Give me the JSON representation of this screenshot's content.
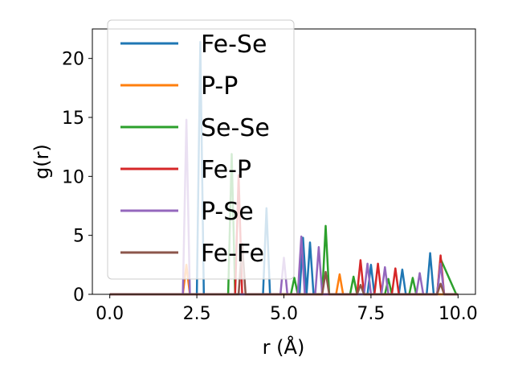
{
  "chart_data": {
    "type": "line",
    "title": "",
    "xlabel": "r (Å)",
    "ylabel": "g(r)",
    "xlim": [
      -0.5,
      10.5
    ],
    "ylim": [
      0,
      22.5
    ],
    "xticks": [
      0.0,
      2.5,
      5.0,
      7.5,
      10.0
    ],
    "xtick_labels": [
      "0.0",
      "2.5",
      "5.0",
      "7.5",
      "10.0"
    ],
    "yticks": [
      0,
      5,
      10,
      15,
      20
    ],
    "ytick_labels": [
      "0",
      "5",
      "10",
      "15",
      "20"
    ],
    "grid": false,
    "legend_position": "upper-left",
    "series": [
      {
        "name": "Fe-Se",
        "color": "#1f77b4",
        "x": [
          0,
          2.5,
          2.6,
          2.7,
          4.4,
          4.5,
          4.6,
          5.45,
          5.55,
          5.65,
          5.75,
          5.85,
          5.95,
          7.4,
          7.5,
          7.6,
          8.3,
          8.4,
          8.5,
          9.1,
          9.2,
          9.3,
          10
        ],
        "y": [
          0,
          0,
          21.4,
          0,
          0,
          7.3,
          0,
          0,
          4.8,
          0,
          4.4,
          0,
          0,
          0,
          2.5,
          0,
          0,
          2.1,
          0,
          0,
          3.5,
          0,
          0
        ]
      },
      {
        "name": "P-P",
        "color": "#ff7f0e",
        "x": [
          0,
          2.1,
          2.2,
          2.3,
          6.5,
          6.6,
          6.7,
          10
        ],
        "y": [
          0,
          0,
          2.5,
          0,
          0,
          1.7,
          0,
          0
        ]
      },
      {
        "name": "Se-Se",
        "color": "#2ca02c",
        "x": [
          0,
          3.4,
          3.5,
          3.6,
          5.2,
          5.3,
          5.4,
          6.1,
          6.2,
          6.3,
          6.9,
          7.0,
          7.1,
          7.9,
          8.0,
          8.1,
          8.6,
          8.7,
          8.8,
          9.4,
          9.5,
          9.95
        ],
        "y": [
          0,
          0,
          11.9,
          0,
          0,
          1.4,
          0,
          0,
          5.8,
          0,
          0,
          1.5,
          0,
          0,
          1.3,
          0,
          0,
          1.4,
          0,
          0,
          3.0,
          0
        ]
      },
      {
        "name": "Fe-P",
        "color": "#d62728",
        "x": [
          0,
          3.6,
          3.7,
          3.8,
          7.1,
          7.2,
          7.3,
          7.6,
          7.7,
          7.8,
          8.1,
          8.2,
          8.3,
          9.4,
          9.5,
          9.6,
          10
        ],
        "y": [
          0,
          0,
          10.1,
          0,
          0,
          2.9,
          0,
          0,
          2.6,
          0,
          0,
          2.2,
          0,
          0,
          3.3,
          0,
          0
        ]
      },
      {
        "name": "P-Se",
        "color": "#9467bd",
        "x": [
          0,
          2.1,
          2.2,
          2.3,
          4.9,
          5.0,
          5.1,
          5.4,
          5.5,
          5.6,
          5.9,
          6.0,
          6.1,
          7.3,
          7.4,
          7.5,
          7.8,
          7.9,
          8.0,
          8.8,
          8.9,
          9.0,
          9.4,
          9.5,
          9.6,
          10
        ],
        "y": [
          0,
          0,
          14.8,
          0,
          0,
          3.1,
          0,
          0,
          4.9,
          0,
          0,
          4.0,
          0,
          0,
          2.6,
          0,
          0,
          2.3,
          0,
          0,
          1.8,
          0,
          0,
          2.6,
          0,
          0
        ]
      },
      {
        "name": "Fe-Fe",
        "color": "#8c564b",
        "x": [
          0,
          3.7,
          3.8,
          3.9,
          6.1,
          6.2,
          6.3,
          7.1,
          7.2,
          7.3,
          9.4,
          9.5,
          9.6,
          10
        ],
        "y": [
          0,
          0,
          4.3,
          0,
          0,
          1.9,
          0,
          0,
          0.8,
          0,
          0,
          0.9,
          0,
          0
        ]
      }
    ]
  }
}
